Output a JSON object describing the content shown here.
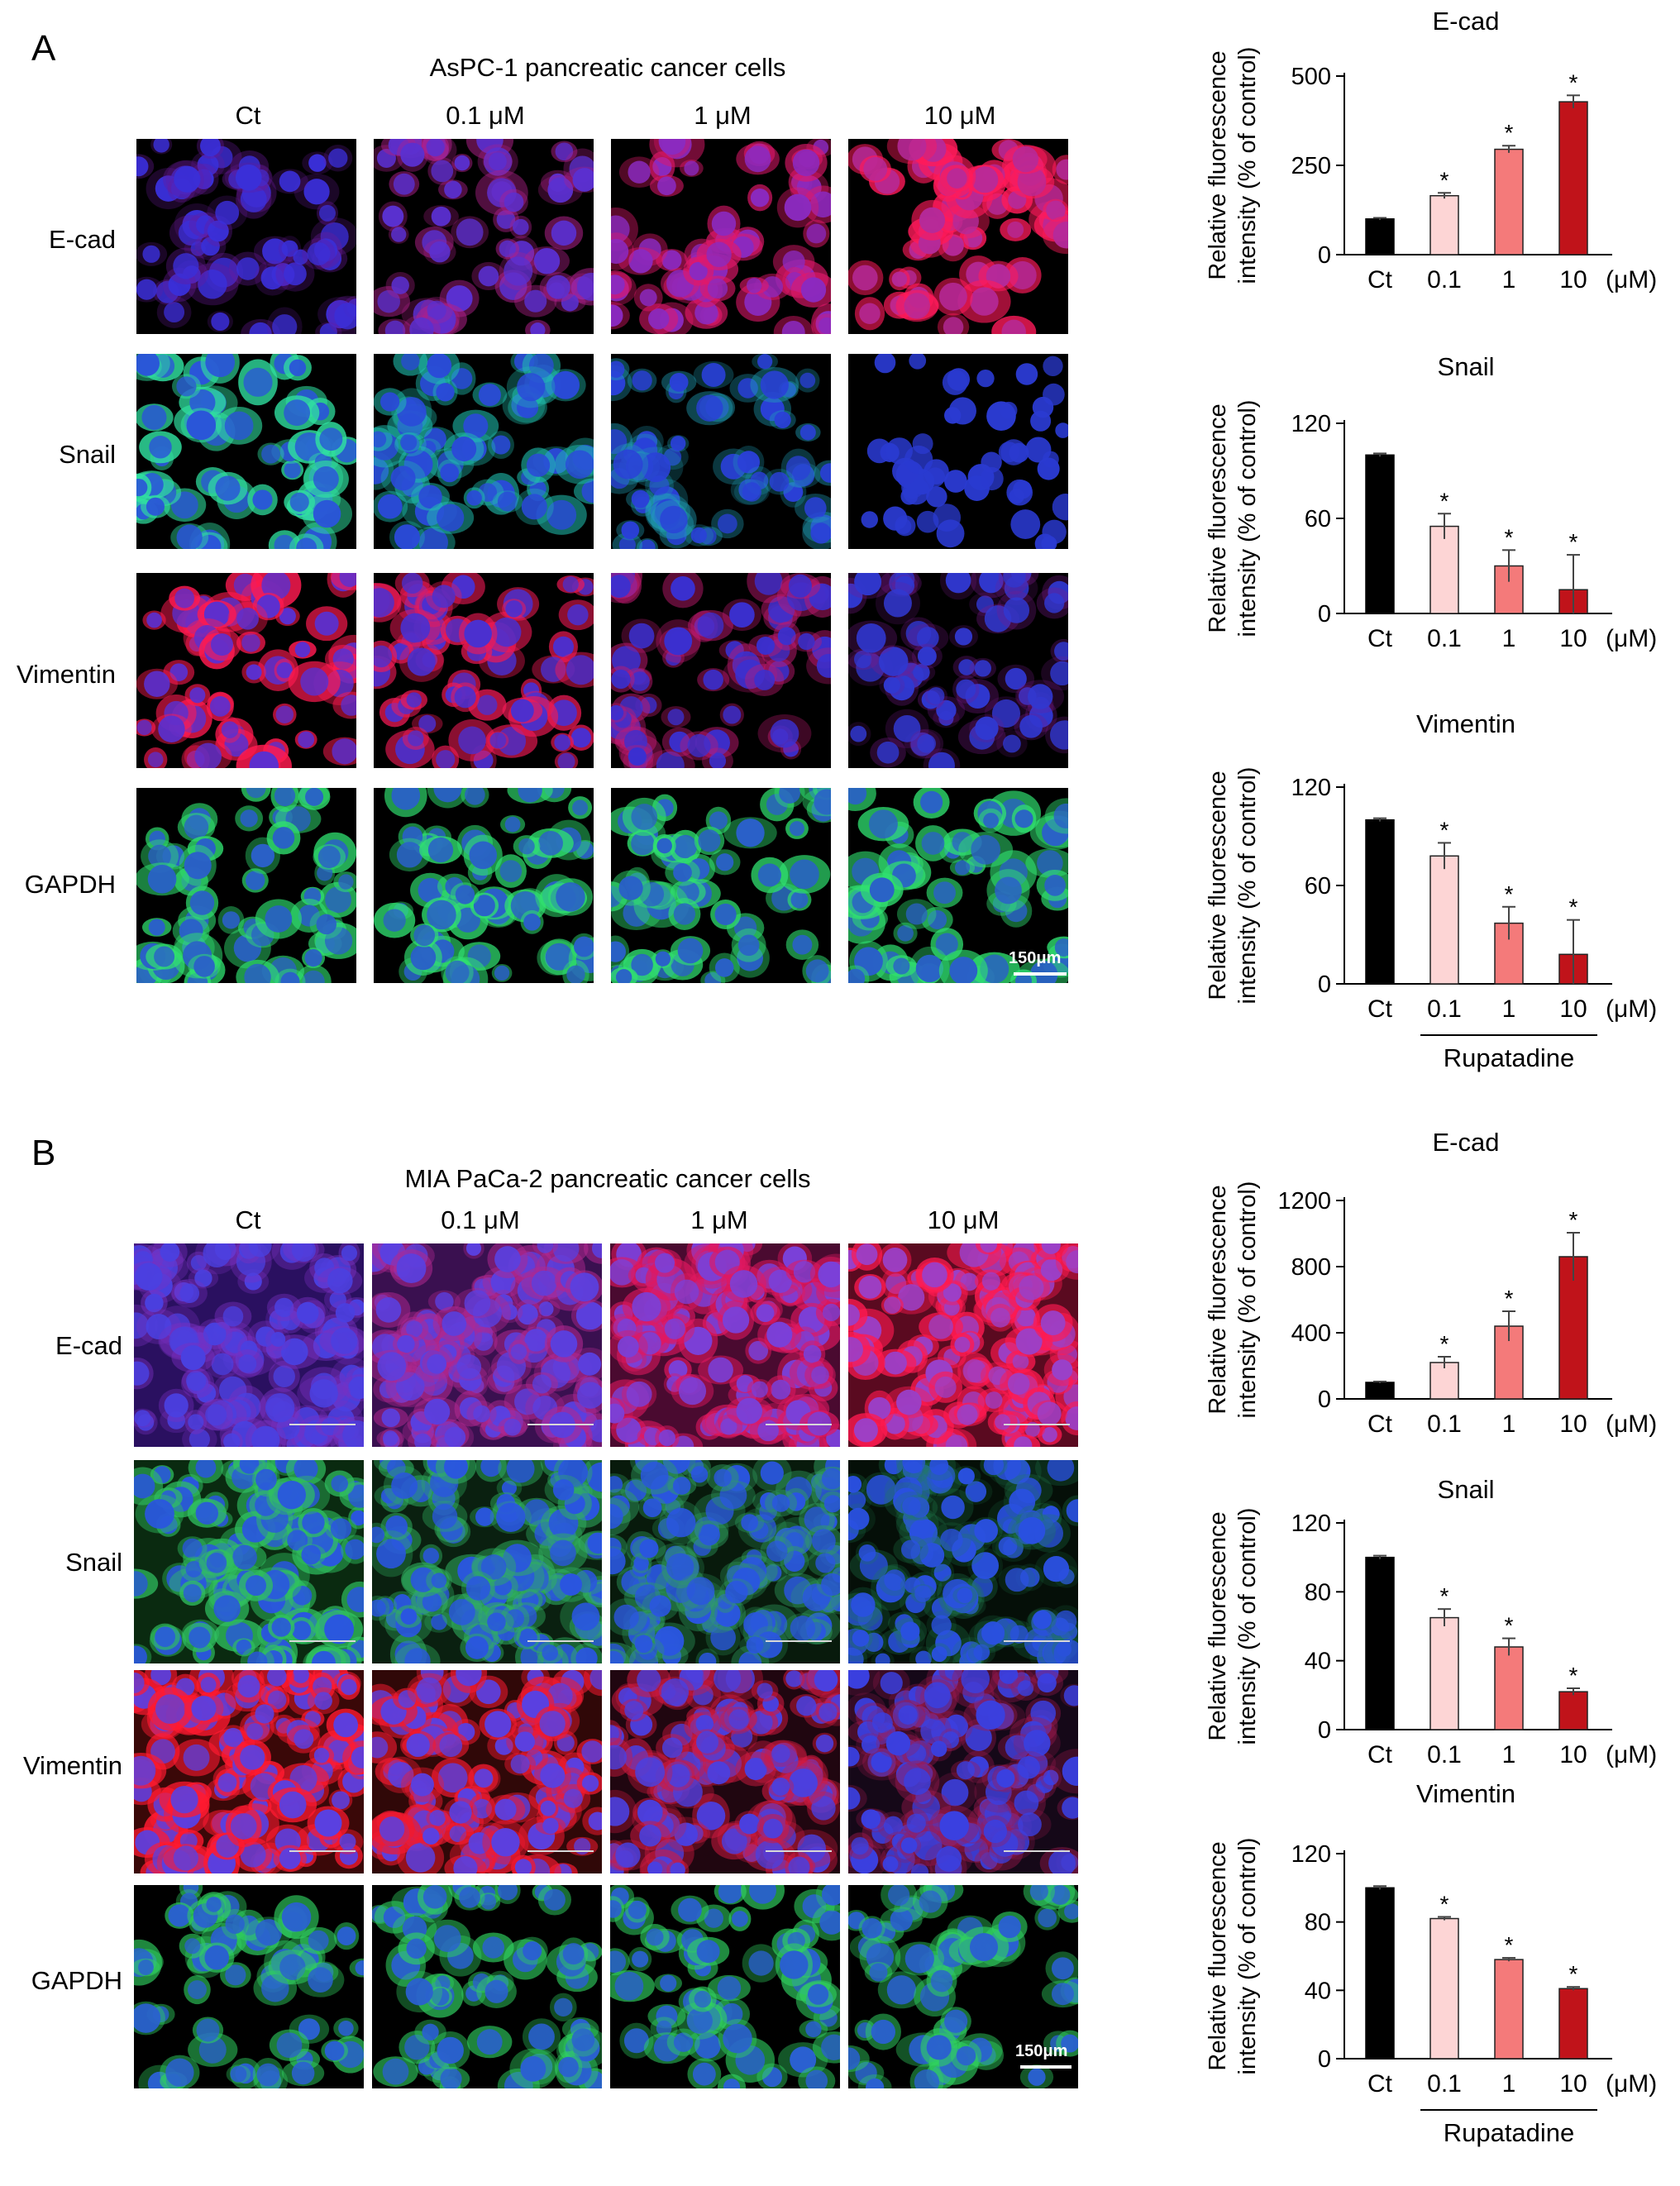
{
  "panels": [
    {
      "letter": "A",
      "title": "AsPC-1 pancreatic cancer cells",
      "columns": [
        "Ct",
        "0.1 μM",
        "1 μM",
        "10 μM"
      ],
      "rows": [
        "E-cad",
        "Snail",
        "Vimentin",
        "GAPDH"
      ],
      "scale_bar": "150μm",
      "treatment_label": "Rupatadine"
    },
    {
      "letter": "B",
      "title": "MIA PaCa-2 pancreatic cancer cells",
      "columns": [
        "Ct",
        "0.1 μM",
        "1 μM",
        "10 μM"
      ],
      "rows": [
        "E-cad",
        "Snail",
        "Vimentin",
        "GAPDH"
      ],
      "scale_bar": "150μm",
      "treatment_label": "Rupatadine"
    }
  ],
  "colors": {
    "ct": "#000000",
    "c01": "#fdd5d5",
    "c1": "#f47a7a",
    "c10": "#c0131a"
  },
  "chart_data": [
    {
      "type": "bar",
      "panel": "A",
      "title": "E-cad",
      "categories": [
        "Ct",
        "0.1",
        "1",
        "10"
      ],
      "unit": "(μM)",
      "values": [
        100,
        165,
        295,
        428
      ],
      "errors": [
        3,
        8,
        10,
        18
      ],
      "significant": [
        false,
        true,
        true,
        true
      ],
      "ylim": [
        0,
        500
      ],
      "yticks": [
        0,
        250,
        500
      ],
      "ylabel": [
        "Relative fluorescence",
        "intensity (% of control)"
      ]
    },
    {
      "type": "bar",
      "panel": "A",
      "title": "Snail",
      "categories": [
        "Ct",
        "0.1",
        "1",
        "10"
      ],
      "unit": "(μM)",
      "values": [
        100,
        55,
        30,
        15
      ],
      "errors": [
        1,
        8,
        10,
        22
      ],
      "significant": [
        false,
        true,
        true,
        true
      ],
      "ylim": [
        0,
        120
      ],
      "yticks": [
        0,
        60,
        120
      ],
      "ylabel": [
        "Relative fluorescence",
        "intensity (% of control)"
      ]
    },
    {
      "type": "bar",
      "panel": "A",
      "title": "Vimentin",
      "categories": [
        "Ct",
        "0.1",
        "1",
        "10"
      ],
      "unit": "(μM)",
      "values": [
        100,
        78,
        37,
        18
      ],
      "errors": [
        1,
        8,
        10,
        21
      ],
      "significant": [
        false,
        true,
        true,
        true
      ],
      "ylim": [
        0,
        120
      ],
      "yticks": [
        0,
        60,
        120
      ],
      "ylabel": [
        "Relative fluorescence",
        "intensity (% of control)"
      ],
      "treatment_label": "Rupatadine"
    },
    {
      "type": "bar",
      "panel": "B",
      "title": "E-cad",
      "categories": [
        "Ct",
        "0.1",
        "1",
        "10"
      ],
      "unit": "(μM)",
      "values": [
        100,
        220,
        440,
        860
      ],
      "errors": [
        5,
        35,
        90,
        145
      ],
      "significant": [
        false,
        true,
        true,
        true
      ],
      "ylim": [
        0,
        1200
      ],
      "yticks": [
        0,
        400,
        800,
        1200
      ],
      "ylabel": [
        "Relative fluorescence",
        "intensity (% of control)"
      ]
    },
    {
      "type": "bar",
      "panel": "B",
      "title": "Snail",
      "categories": [
        "Ct",
        "0.1",
        "1",
        "10"
      ],
      "unit": "(μM)",
      "values": [
        100,
        65,
        48,
        22
      ],
      "errors": [
        1,
        5,
        5,
        2
      ],
      "significant": [
        false,
        true,
        true,
        true
      ],
      "ylim": [
        0,
        120
      ],
      "yticks": [
        0,
        40,
        80,
        120
      ],
      "ylabel": [
        "Relative fluorescence",
        "intensity (% of control)"
      ]
    },
    {
      "type": "bar",
      "panel": "B",
      "title": "Vimentin",
      "categories": [
        "Ct",
        "0.1",
        "1",
        "10"
      ],
      "unit": "(μM)",
      "values": [
        100,
        82,
        58,
        41
      ],
      "errors": [
        1,
        1,
        1,
        1
      ],
      "significant": [
        false,
        true,
        true,
        true
      ],
      "ylim": [
        0,
        120
      ],
      "yticks": [
        0,
        40,
        80,
        120
      ],
      "ylabel": [
        "Relative fluorescence",
        "intensity (% of control)"
      ],
      "treatment_label": "Rupatadine"
    }
  ]
}
